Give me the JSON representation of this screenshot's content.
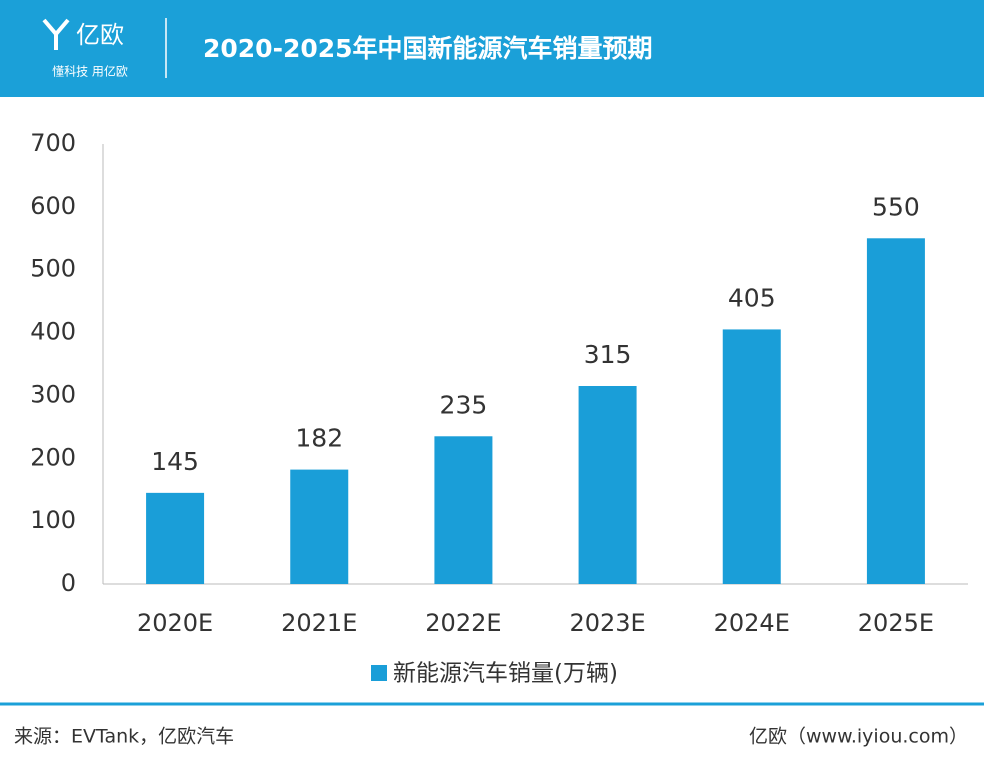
{
  "header": {
    "logo": "亿欧",
    "tagline": "懂科技 用亿欧"
  },
  "chart_data": {
    "type": "bar",
    "title": "2020-2025年中国新能源汽车销量预期",
    "categories": [
      "2020E",
      "2021E",
      "2022E",
      "2023E",
      "2024E",
      "2025E"
    ],
    "series": [
      {
        "name": "新能源汽车销量(万辆)",
        "color": "#1a9ed8",
        "values": [
          145,
          182,
          235,
          315,
          405,
          550
        ]
      }
    ],
    "ylim": [
      0,
      700
    ],
    "yticks": [
      0,
      100,
      200,
      300,
      400,
      500,
      600,
      700
    ],
    "grid": false,
    "legend": "bottom"
  },
  "footer": {
    "source": "来源：EVTank，亿欧汽车",
    "site": "亿欧（www.iyiou.com）"
  }
}
